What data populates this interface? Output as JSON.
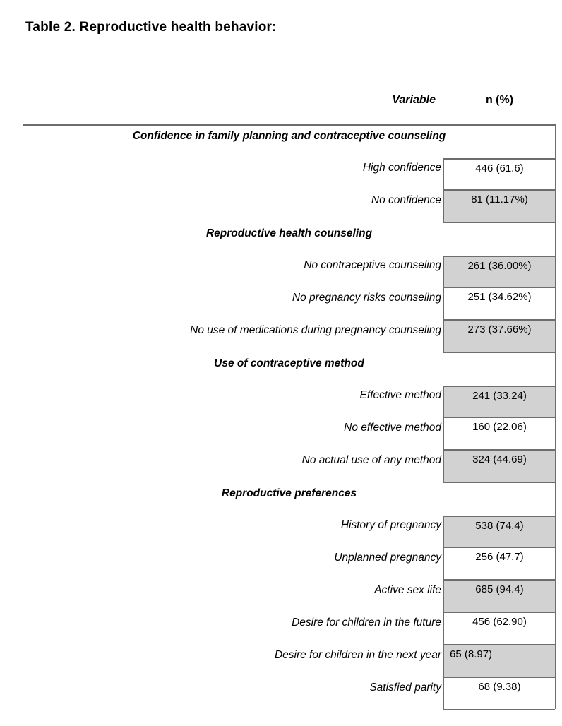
{
  "page": {
    "title": "Table 2. Reproductive health behavior:"
  },
  "table": {
    "col_headers": {
      "variable": "Variable",
      "n_pct": "n (%)"
    },
    "colors": {
      "shaded_cell": "#d2d2d2",
      "border": "#6d6d6d",
      "text": "#000000",
      "background": "#ffffff"
    },
    "rows": [
      {
        "type": "section",
        "label": "Confidence in family planning and contraceptive counseling"
      },
      {
        "type": "data",
        "label": "High confidence",
        "value": "446 (61.6)",
        "shaded": false
      },
      {
        "type": "data",
        "label": "No confidence",
        "value": "81 (11.17%)",
        "shaded": true
      },
      {
        "type": "section",
        "label": "Reproductive health counseling"
      },
      {
        "type": "data",
        "label": "No contraceptive counseling",
        "value": "261 (36.00%)",
        "shaded": true
      },
      {
        "type": "data",
        "label": "No pregnancy risks counseling",
        "value": "251 (34.62%)",
        "shaded": false
      },
      {
        "type": "data",
        "label": "No use of medications during pregnancy counseling",
        "value": "273 (37.66%)",
        "shaded": true
      },
      {
        "type": "section",
        "label": "Use of contraceptive method"
      },
      {
        "type": "data",
        "label": "Effective method",
        "value": "241 (33.24)",
        "shaded": true
      },
      {
        "type": "data",
        "label": "No effective method",
        "value": "160 (22.06)",
        "shaded": false
      },
      {
        "type": "data",
        "label": "No actual use of any method",
        "value": "324 (44.69)",
        "shaded": true
      },
      {
        "type": "section",
        "label": "Reproductive preferences"
      },
      {
        "type": "data",
        "label": "History of pregnancy",
        "value": "538 (74.4)",
        "shaded": true
      },
      {
        "type": "data",
        "label": "Unplanned pregnancy",
        "value": "256 (47.7)",
        "shaded": false
      },
      {
        "type": "data",
        "label": "Active sex life",
        "value": "685 (94.4)",
        "shaded": true
      },
      {
        "type": "data",
        "label": "Desire for children in the future",
        "value": "456 (62.90)",
        "shaded": false
      },
      {
        "type": "data",
        "label": "Desire for children in the next year",
        "value": "65 (8.97)",
        "shaded": true,
        "value_align": "left"
      },
      {
        "type": "data",
        "label": "Satisfied parity",
        "value": "68 (9.38)",
        "shaded": false
      }
    ]
  }
}
